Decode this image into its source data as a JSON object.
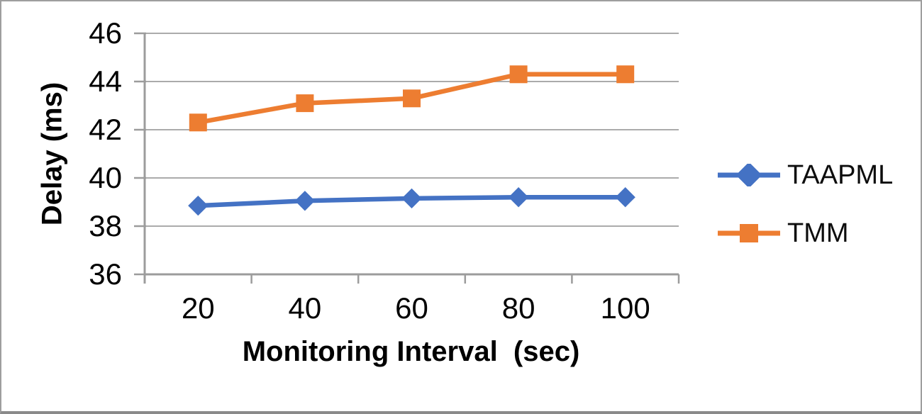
{
  "chart_data": {
    "type": "line",
    "x": [
      20,
      40,
      60,
      80,
      100
    ],
    "xticks": [
      20,
      40,
      60,
      80,
      100
    ],
    "yticks": [
      36,
      38,
      40,
      42,
      44,
      46
    ],
    "ylim": [
      36,
      46
    ],
    "series": [
      {
        "name": "TAAPML",
        "values": [
          38.85,
          39.05,
          39.15,
          39.2,
          39.2
        ],
        "color": "#4472C4",
        "marker": "diamond"
      },
      {
        "name": "TMM",
        "values": [
          42.3,
          43.1,
          43.3,
          44.3,
          44.3
        ],
        "color": "#ED7D31",
        "marker": "square"
      }
    ],
    "xlabel": "Monitoring Interval  (sec)",
    "ylabel": "Delay (ms)",
    "grid": "horizontal",
    "legend_position": "right",
    "colors": {
      "gridline": "#ABABAB",
      "axis": "#9C9C9C",
      "tick_text": "#000000"
    }
  }
}
